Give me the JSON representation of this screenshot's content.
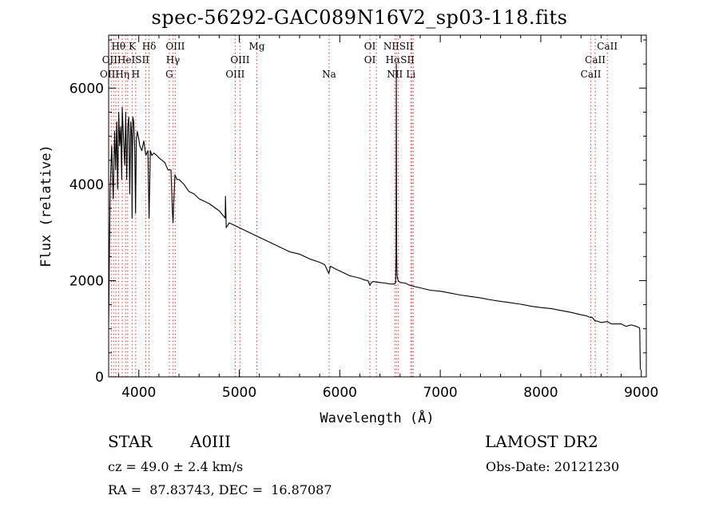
{
  "title": "spec-56292-GAC089N16V2_sp03-118.fits",
  "info": {
    "class": "STAR",
    "subclass": "A0III",
    "survey": "LAMOST DR2",
    "cz": "cz = 49.0 ± 2.4 km/s",
    "obs_date": "Obs-Date: 20121230",
    "coords": "RA =  87.83743, DEC =  16.87087"
  },
  "chart_data": {
    "type": "line",
    "title": "spec-56292-GAC089N16V2_sp03-118.fits",
    "xlabel": "Wavelength (Å)",
    "ylabel": "Flux (relative)",
    "xlim": [
      3700,
      9050
    ],
    "ylim": [
      0,
      7100
    ],
    "xticks": [
      4000,
      5000,
      6000,
      7000,
      8000,
      9000
    ],
    "yticks": [
      0,
      2000,
      4000,
      6000
    ],
    "grid": false,
    "legend": "none",
    "line_color": "#000000",
    "series": [
      {
        "x": [
          3700,
          3715,
          3730,
          3745,
          3760,
          3770,
          3780,
          3790,
          3800,
          3810,
          3820,
          3830,
          3835,
          3845,
          3860,
          3870,
          3880,
          3890,
          3900,
          3910,
          3920,
          3930,
          3933,
          3940,
          3950,
          3960,
          3968,
          3975,
          3985,
          3995,
          4010,
          4030,
          4050,
          4070,
          4090,
          4102,
          4115,
          4130,
          4150,
          4180,
          4200,
          4230,
          4260,
          4290,
          4320,
          4335,
          4341,
          4347,
          4360,
          4380,
          4400,
          4450,
          4500,
          4550,
          4600,
          4700,
          4800,
          4860,
          4862,
          4870,
          4900,
          4950,
          5000,
          5100,
          5200,
          5300,
          5400,
          5500,
          5600,
          5700,
          5800,
          5850,
          5890,
          5896,
          5905,
          5950,
          6000,
          6100,
          6200,
          6250,
          6280,
          6300,
          6310,
          6330,
          6400,
          6450,
          6500,
          6540,
          6555,
          6560,
          6563,
          6566,
          6570,
          6580,
          6600,
          6650,
          6700,
          6800,
          6900,
          7000,
          7100,
          7200,
          7300,
          7400,
          7500,
          7600,
          7700,
          7800,
          7900,
          8000,
          8100,
          8200,
          8300,
          8400,
          8450,
          8498,
          8510,
          8542,
          8560,
          8600,
          8662,
          8700,
          8800,
          8850,
          8900,
          8950,
          8980,
          8985,
          8990
        ],
        "y": [
          1100,
          3900,
          4800,
          3700,
          5100,
          4300,
          5300,
          3900,
          5500,
          4800,
          5200,
          4100,
          5600,
          5100,
          4400,
          5500,
          4100,
          5200,
          5400,
          3800,
          5300,
          5000,
          3300,
          5400,
          5300,
          4700,
          3400,
          4900,
          5100,
          5000,
          4800,
          4700,
          4900,
          4600,
          4700,
          3300,
          4700,
          4600,
          4650,
          4600,
          4550,
          4500,
          4450,
          4300,
          4300,
          3400,
          3200,
          3600,
          4200,
          4100,
          4100,
          4000,
          3850,
          3800,
          3700,
          3600,
          3450,
          3300,
          3750,
          3100,
          3200,
          3150,
          3100,
          3000,
          2900,
          2800,
          2700,
          2600,
          2550,
          2450,
          2380,
          2330,
          2150,
          2180,
          2300,
          2250,
          2200,
          2100,
          2050,
          2010,
          2000,
          1900,
          1950,
          1980,
          1960,
          1950,
          1930,
          1930,
          1950,
          2500,
          6500,
          2600,
          2100,
          2000,
          1960,
          1950,
          1900,
          1850,
          1800,
          1780,
          1740,
          1700,
          1670,
          1640,
          1600,
          1570,
          1540,
          1510,
          1470,
          1440,
          1420,
          1380,
          1340,
          1290,
          1270,
          1230,
          1240,
          1160,
          1160,
          1130,
          1150,
          1100,
          1100,
          1050,
          1080,
          1050,
          1020,
          980,
          150
        ]
      }
    ],
    "lines": [
      {
        "wl": 3727,
        "labels": [
          "OII"
        ]
      },
      {
        "wl": 3750,
        "labels": [
          "OII"
        ]
      },
      {
        "wl": 3771,
        "labels": [
          "Hθ"
        ]
      },
      {
        "wl": 3798,
        "labels": [
          "Hθ"
        ]
      },
      {
        "wl": 3835,
        "labels": [
          "Hη"
        ]
      },
      {
        "wl": 3869,
        "labels": [
          "HeI"
        ]
      },
      {
        "wl": 3889,
        "labels": [
          "HeI"
        ]
      },
      {
        "wl": 3934,
        "labels": [
          "K"
        ]
      },
      {
        "wl": 3969,
        "labels": [
          "H",
          "SII"
        ]
      },
      {
        "wl": 4069,
        "labels": [
          "SII"
        ]
      },
      {
        "wl": 4102,
        "labels": [
          "Hδ"
        ]
      },
      {
        "wl": 4304,
        "labels": [
          "G"
        ]
      },
      {
        "wl": 4340,
        "labels": [
          "Hγ",
          "OIII"
        ]
      },
      {
        "wl": 4363,
        "labels": [
          "OIII"
        ]
      },
      {
        "wl": 4959,
        "labels": [
          "OIII"
        ]
      },
      {
        "wl": 5007,
        "labels": [
          "OIII"
        ]
      },
      {
        "wl": 5175,
        "labels": [
          "Mg"
        ]
      },
      {
        "wl": 5894,
        "labels": [
          "Na"
        ]
      },
      {
        "wl": 6300,
        "labels": [
          "OI"
        ]
      },
      {
        "wl": 6364,
        "labels": [
          "OI"
        ]
      },
      {
        "wl": 6548,
        "labels": [
          "NII"
        ]
      },
      {
        "wl": 6563,
        "labels": [
          "Hα"
        ]
      },
      {
        "wl": 6583,
        "labels": [
          "NII"
        ]
      },
      {
        "wl": 6707,
        "labels": [
          "Li"
        ]
      },
      {
        "wl": 6716,
        "labels": [
          "SII"
        ]
      },
      {
        "wl": 6731,
        "labels": [
          "SII"
        ]
      },
      {
        "wl": 8498,
        "labels": [
          "CaII"
        ]
      },
      {
        "wl": 8542,
        "labels": [
          "CaII"
        ]
      },
      {
        "wl": 8662,
        "labels": [
          "CaII"
        ]
      }
    ],
    "line_label_rows": [
      {
        "label": "Hθ",
        "wl": 3798,
        "row": 0
      },
      {
        "label": "K",
        "wl": 3934,
        "row": 0
      },
      {
        "label": "Hδ",
        "wl": 4102,
        "row": 0
      },
      {
        "label": "OIII",
        "wl": 4363,
        "row": 0
      },
      {
        "label": "Mg",
        "wl": 5175,
        "row": 0
      },
      {
        "label": "OI",
        "wl": 6300,
        "row": 0
      },
      {
        "label": "NIISII",
        "wl": 6583,
        "row": 0
      },
      {
        "label": "CaII",
        "wl": 8662,
        "row": 0
      },
      {
        "label": "OIIHeISII",
        "wl": 3870,
        "row": 1
      },
      {
        "label": "Hγ",
        "wl": 4340,
        "row": 1
      },
      {
        "label": "OIII",
        "wl": 5007,
        "row": 1
      },
      {
        "label": "OI",
        "wl": 6300,
        "row": 1
      },
      {
        "label": "HαSII",
        "wl": 6600,
        "row": 1
      },
      {
        "label": "CaII",
        "wl": 8542,
        "row": 1
      },
      {
        "label": "OIIHη",
        "wl": 3760,
        "row": 2
      },
      {
        "label": "H",
        "wl": 3969,
        "row": 2
      },
      {
        "label": "G",
        "wl": 4304,
        "row": 2
      },
      {
        "label": "OIII",
        "wl": 4959,
        "row": 2
      },
      {
        "label": "Na",
        "wl": 5894,
        "row": 2
      },
      {
        "label": "NII",
        "wl": 6548,
        "row": 2
      },
      {
        "label": "Li",
        "wl": 6707,
        "row": 2
      },
      {
        "label": "CaII",
        "wl": 8498,
        "row": 2
      }
    ]
  }
}
